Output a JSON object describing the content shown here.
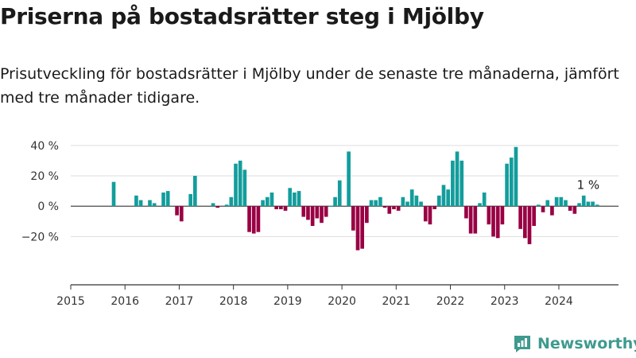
{
  "title": "Priserna på bostadsrätter steg i Mjölby",
  "subtitle": "Prisutveckling för bostadsrätter i Mjölby under de senaste tre månaderna, jämfört med tre månader tidigare.",
  "brand": {
    "name": "Newsworthy",
    "icon": "newsworthy-logo-icon"
  },
  "colors": {
    "positive": "#139d9c",
    "negative": "#990044",
    "grid": "#dddddd",
    "axis": "#333333"
  },
  "chart_data": {
    "type": "bar",
    "x_unit": "month",
    "x_start": "2015-01",
    "y_unit": "%",
    "ylim": [
      -35,
      42
    ],
    "xlim": [
      2015,
      2025.1
    ],
    "y_ticks": [
      40,
      20,
      0,
      -20
    ],
    "y_tick_labels": [
      "40 %",
      "20 %",
      "0 %",
      "−20 %"
    ],
    "x_ticks": [
      2015,
      2016,
      2017,
      2018,
      2019,
      2020,
      2021,
      2022,
      2023,
      2024
    ],
    "x_tick_labels": [
      "2015",
      "2016",
      "2017",
      "2018",
      "2019",
      "2020",
      "2021",
      "2022",
      "2023",
      "2024"
    ],
    "grid": true,
    "annotation": {
      "text": "1 %",
      "month_index": 114
    },
    "values": [
      null,
      null,
      null,
      null,
      null,
      null,
      null,
      null,
      null,
      16,
      null,
      null,
      null,
      null,
      7,
      4,
      null,
      4,
      2,
      null,
      9,
      10,
      null,
      -6,
      -10,
      null,
      8,
      20,
      null,
      null,
      null,
      2,
      -1,
      null,
      1,
      6,
      28,
      30,
      24,
      -17,
      -18,
      -17,
      4,
      6,
      9,
      -2,
      -2,
      -3,
      12,
      9,
      10,
      -7,
      -9,
      -13,
      -8,
      -11,
      -7,
      0,
      6,
      17,
      null,
      36,
      -16,
      -29,
      -28,
      -11,
      4,
      4,
      6,
      -1,
      -5,
      -2,
      -3,
      6,
      3,
      11,
      7,
      3,
      -10,
      -12,
      -2,
      7,
      14,
      11,
      30,
      36,
      30,
      -8,
      -18,
      -18,
      2,
      9,
      -12,
      -20,
      -21,
      -12,
      28,
      32,
      39,
      -15,
      -21,
      -25,
      -13,
      1,
      -4,
      4,
      -6,
      6,
      6,
      4,
      -3,
      -5,
      2,
      7,
      3,
      3,
      1
    ]
  }
}
